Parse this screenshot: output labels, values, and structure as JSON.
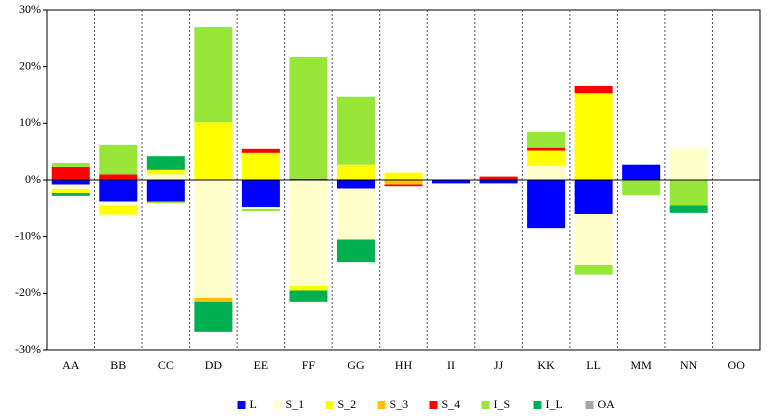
{
  "chart_data": {
    "type": "stacked_bar",
    "categories": [
      "AA",
      "BB",
      "CC",
      "DD",
      "EE",
      "FF",
      "GG",
      "HH",
      "II",
      "JJ",
      "KK",
      "LL",
      "MM",
      "NN",
      "OO"
    ],
    "series": [
      {
        "name": "L",
        "color": "#0000ff",
        "values": [
          -0.8,
          -3.8,
          -3.8,
          0,
          -4.8,
          0,
          -1.5,
          0,
          -0.6,
          -0.6,
          -8.5,
          -6,
          2.7,
          0,
          0
        ]
      },
      {
        "name": "S_1",
        "color": "#ffffcc",
        "values": [
          -0.8,
          -0.7,
          1.0,
          -20.8,
          -0.3,
          -18.7,
          -9,
          0,
          0,
          0,
          2.5,
          -9,
          0,
          5.7,
          0
        ]
      },
      {
        "name": "S_2",
        "color": "#ffff00",
        "values": [
          -0.7,
          -1.6,
          0.8,
          10.2,
          4.8,
          -0.8,
          2.7,
          1.3,
          0,
          0,
          2.7,
          15.3,
          0,
          0,
          0
        ]
      },
      {
        "name": "S_3",
        "color": "#ffc000",
        "values": [
          0,
          0,
          0,
          -0.7,
          0,
          0,
          0,
          -0.8,
          0,
          0,
          0,
          0,
          0,
          0,
          0
        ]
      },
      {
        "name": "S_4",
        "color": "#ff0000",
        "values": [
          2.3,
          1.0,
          0,
          0,
          0.7,
          0.2,
          0,
          -0.3,
          0,
          0.6,
          0.5,
          1.3,
          0,
          0,
          0
        ]
      },
      {
        "name": "I_S",
        "color": "#99e63a",
        "values": [
          0.7,
          5.2,
          -0.3,
          16.8,
          -0.4,
          21.5,
          12,
          0,
          0,
          0,
          2.8,
          -1.7,
          -2.7,
          -4.5,
          0
        ]
      },
      {
        "name": "I_L",
        "color": "#00b050",
        "values": [
          -0.5,
          0,
          2.4,
          -5.3,
          0,
          -2,
          -4,
          0,
          0,
          0,
          0,
          0,
          0,
          -1.3,
          0
        ]
      },
      {
        "name": "OA",
        "color": "#a6a6a6",
        "values": [
          0,
          0,
          0,
          0,
          0,
          0,
          0,
          0,
          0,
          0,
          0,
          0,
          0,
          0,
          0
        ]
      }
    ],
    "ylim": [
      -30,
      30
    ],
    "yticks": [
      {
        "value": -30,
        "label": "-30%"
      },
      {
        "value": -20,
        "label": "-20%"
      },
      {
        "value": -10,
        "label": "-10%"
      },
      {
        "value": 0,
        "label": "0%"
      },
      {
        "value": 10,
        "label": "10%"
      },
      {
        "value": 20,
        "label": "20%"
      },
      {
        "value": 30,
        "label": "30%"
      }
    ],
    "legend": "bottom"
  }
}
